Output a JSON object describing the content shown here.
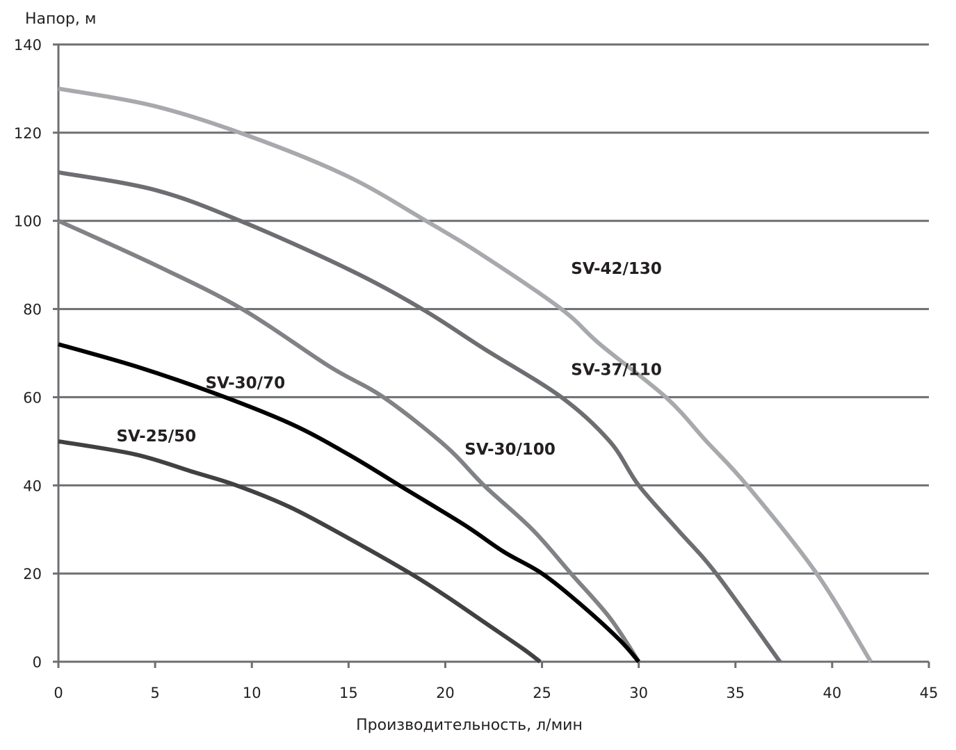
{
  "chart_data": {
    "type": "line",
    "xlabel": "Производительность, л/мин",
    "ylabel": "Напор, м",
    "xlim": [
      0,
      45
    ],
    "ylim": [
      0,
      140
    ],
    "xticks": [
      0,
      5,
      10,
      15,
      20,
      25,
      30,
      35,
      40,
      45
    ],
    "yticks": [
      0,
      20,
      40,
      60,
      80,
      100,
      120,
      140
    ],
    "grid": "horizontal",
    "series": [
      {
        "name": "SV-42/130",
        "color": "#a7a9ac",
        "x": [
          0,
          5,
          10,
          15,
          19,
          22,
          26,
          28,
          31.4,
          33.5,
          35.6,
          39.2,
          42
        ],
        "y": [
          130,
          126,
          119,
          110,
          100,
          92,
          80,
          72,
          60,
          50,
          40,
          20,
          0
        ]
      },
      {
        "name": "SV-37/110",
        "color": "#6d6e71",
        "x": [
          0,
          5,
          9.4,
          15,
          18.8,
          22,
          26,
          28.5,
          30,
          32,
          34,
          37.3
        ],
        "y": [
          111,
          107,
          100,
          89,
          80,
          71,
          60,
          50,
          40,
          30,
          20,
          0
        ]
      },
      {
        "name": "SV-30/100",
        "color": "#808285",
        "x": [
          0,
          5,
          9.5,
          14,
          16.8,
          20,
          22,
          24.5,
          26.5,
          28.5,
          30
        ],
        "y": [
          100,
          90,
          80,
          67,
          60,
          49,
          40,
          30,
          20,
          10,
          0
        ]
      },
      {
        "name": "SV-30/70",
        "color": "#000000",
        "x": [
          0,
          4,
          8,
          12,
          15,
          18,
          21,
          23,
          25,
          27,
          29,
          30
        ],
        "y": [
          72,
          67,
          61,
          54,
          47,
          39,
          31,
          25,
          20,
          13,
          5,
          0
        ]
      },
      {
        "name": "SV-25/50",
        "color": "#414042",
        "x": [
          0,
          4,
          7,
          9.2,
          12,
          15,
          18.2,
          20,
          22,
          24,
          24.9
        ],
        "y": [
          50,
          47,
          43,
          40,
          35,
          28,
          20,
          15,
          9,
          3,
          0
        ]
      }
    ],
    "labels": [
      {
        "text": "SV-42/130",
        "x": 26.5,
        "y": 88
      },
      {
        "text": "SV-37/110",
        "x": 26.5,
        "y": 65
      },
      {
        "text": "SV-30/100",
        "x": 21.0,
        "y": 47
      },
      {
        "text": "SV-30/70",
        "x": 7.6,
        "y": 62
      },
      {
        "text": "SV-25/50",
        "x": 3.0,
        "y": 50
      }
    ]
  }
}
